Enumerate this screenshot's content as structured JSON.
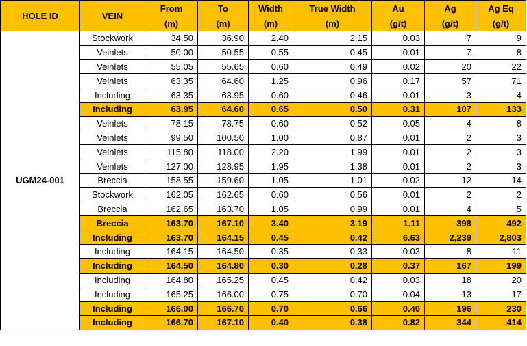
{
  "headers": {
    "hole_id": "HOLE ID",
    "vein": "VEIN",
    "from": "From",
    "to": "To",
    "width": "Width",
    "true_width": "True Width",
    "au": "Au",
    "ag": "Ag",
    "ag_eq": "Ag Eq",
    "unit_m": "(m)",
    "unit_gt": "(g/t)"
  },
  "hole_id": "UGM24-001",
  "highlight_color": "#FFC000",
  "rows": [
    {
      "vein": "Stockwork",
      "from": "34.50",
      "to": "36.90",
      "width": "2.40",
      "true_width": "2.15",
      "au": "0.03",
      "ag": "7",
      "ag_eq": "9",
      "highlight": false
    },
    {
      "vein": "Veinlets",
      "from": "50.00",
      "to": "50.55",
      "width": "0.55",
      "true_width": "0.45",
      "au": "0.01",
      "ag": "7",
      "ag_eq": "8",
      "highlight": false
    },
    {
      "vein": "Veinlets",
      "from": "55.05",
      "to": "55.65",
      "width": "0.60",
      "true_width": "0.49",
      "au": "0.02",
      "ag": "20",
      "ag_eq": "22",
      "highlight": false
    },
    {
      "vein": "Veinlets",
      "from": "63.35",
      "to": "64.60",
      "width": "1.25",
      "true_width": "0.96",
      "au": "0.17",
      "ag": "57",
      "ag_eq": "71",
      "highlight": false
    },
    {
      "vein": "Including",
      "from": "63.35",
      "to": "63.95",
      "width": "0.60",
      "true_width": "0.46",
      "au": "0.01",
      "ag": "3",
      "ag_eq": "4",
      "highlight": false
    },
    {
      "vein": "Including",
      "from": "63.95",
      "to": "64.60",
      "width": "0.65",
      "true_width": "0.50",
      "au": "0.31",
      "ag": "107",
      "ag_eq": "133",
      "highlight": true
    },
    {
      "vein": "Veinlets",
      "from": "78.15",
      "to": "78.75",
      "width": "0.60",
      "true_width": "0.52",
      "au": "0.05",
      "ag": "4",
      "ag_eq": "8",
      "highlight": false
    },
    {
      "vein": "Veinlets",
      "from": "99.50",
      "to": "100.50",
      "width": "1.00",
      "true_width": "0.87",
      "au": "0.01",
      "ag": "2",
      "ag_eq": "3",
      "highlight": false
    },
    {
      "vein": "Veinlets",
      "from": "115.80",
      "to": "118.00",
      "width": "2.20",
      "true_width": "1.99",
      "au": "0.01",
      "ag": "2",
      "ag_eq": "3",
      "highlight": false
    },
    {
      "vein": "Veinlets",
      "from": "127.00",
      "to": "128.95",
      "width": "1.95",
      "true_width": "1.38",
      "au": "0.01",
      "ag": "2",
      "ag_eq": "3",
      "highlight": false
    },
    {
      "vein": "Breccia",
      "from": "158.55",
      "to": "159.60",
      "width": "1.05",
      "true_width": "1.01",
      "au": "0.02",
      "ag": "12",
      "ag_eq": "14",
      "highlight": false
    },
    {
      "vein": "Stockwork",
      "from": "162.05",
      "to": "162.65",
      "width": "0.60",
      "true_width": "0.56",
      "au": "0.01",
      "ag": "2",
      "ag_eq": "2",
      "highlight": false
    },
    {
      "vein": "Breccia",
      "from": "162.65",
      "to": "163.70",
      "width": "1.05",
      "true_width": "0.99",
      "au": "0.01",
      "ag": "4",
      "ag_eq": "5",
      "highlight": false
    },
    {
      "vein": "Breccia",
      "from": "163.70",
      "to": "167.10",
      "width": "3.40",
      "true_width": "3.19",
      "au": "1.11",
      "ag": "398",
      "ag_eq": "492",
      "highlight": true
    },
    {
      "vein": "Including",
      "from": "163.70",
      "to": "164.15",
      "width": "0.45",
      "true_width": "0.42",
      "au": "6.63",
      "ag": "2,239",
      "ag_eq": "2,803",
      "highlight": true
    },
    {
      "vein": "Including",
      "from": "164.15",
      "to": "164.50",
      "width": "0.35",
      "true_width": "0.33",
      "au": "0.03",
      "ag": "8",
      "ag_eq": "11",
      "highlight": false
    },
    {
      "vein": "Including",
      "from": "164.50",
      "to": "164.80",
      "width": "0.30",
      "true_width": "0.28",
      "au": "0.37",
      "ag": "167",
      "ag_eq": "199",
      "highlight": true
    },
    {
      "vein": "Including",
      "from": "164.80",
      "to": "165.25",
      "width": "0.45",
      "true_width": "0.42",
      "au": "0.03",
      "ag": "18",
      "ag_eq": "20",
      "highlight": false
    },
    {
      "vein": "Including",
      "from": "165.25",
      "to": "166.00",
      "width": "0.75",
      "true_width": "0.70",
      "au": "0.04",
      "ag": "13",
      "ag_eq": "17",
      "highlight": false
    },
    {
      "vein": "Including",
      "from": "166.00",
      "to": "166.70",
      "width": "0.70",
      "true_width": "0.66",
      "au": "0.40",
      "ag": "196",
      "ag_eq": "230",
      "highlight": true
    },
    {
      "vein": "Including",
      "from": "166.70",
      "to": "167.10",
      "width": "0.40",
      "true_width": "0.38",
      "au": "0.82",
      "ag": "344",
      "ag_eq": "414",
      "highlight": true
    }
  ]
}
